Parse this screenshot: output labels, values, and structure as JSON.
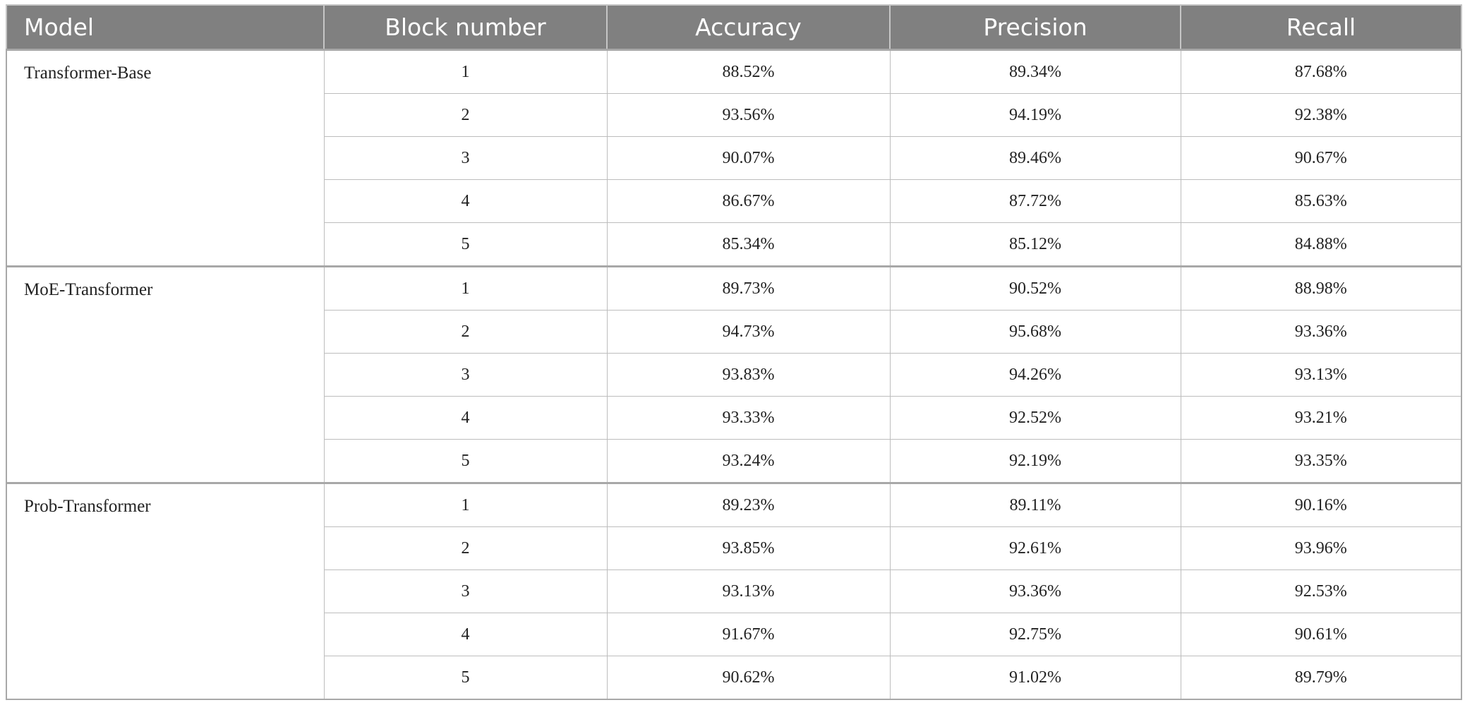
{
  "table": {
    "headers": {
      "model": "Model",
      "block": "Block number",
      "accuracy": "Accuracy",
      "precision": "Precision",
      "recall": "Recall"
    },
    "groups": [
      {
        "model": "Transformer-Base",
        "rows": [
          {
            "block": "1",
            "accuracy": "88.52%",
            "precision": "89.34%",
            "recall": "87.68%"
          },
          {
            "block": "2",
            "accuracy": "93.56%",
            "precision": "94.19%",
            "recall": "92.38%"
          },
          {
            "block": "3",
            "accuracy": "90.07%",
            "precision": "89.46%",
            "recall": "90.67%"
          },
          {
            "block": "4",
            "accuracy": "86.67%",
            "precision": "87.72%",
            "recall": "85.63%"
          },
          {
            "block": "5",
            "accuracy": "85.34%",
            "precision": "85.12%",
            "recall": "84.88%"
          }
        ]
      },
      {
        "model": "MoE-Transformer",
        "rows": [
          {
            "block": "1",
            "accuracy": "89.73%",
            "precision": "90.52%",
            "recall": "88.98%"
          },
          {
            "block": "2",
            "accuracy": "94.73%",
            "precision": "95.68%",
            "recall": "93.36%"
          },
          {
            "block": "3",
            "accuracy": "93.83%",
            "precision": "94.26%",
            "recall": "93.13%"
          },
          {
            "block": "4",
            "accuracy": "93.33%",
            "precision": "92.52%",
            "recall": "93.21%"
          },
          {
            "block": "5",
            "accuracy": "93.24%",
            "precision": "92.19%",
            "recall": "93.35%"
          }
        ]
      },
      {
        "model": "Prob-Transformer",
        "rows": [
          {
            "block": "1",
            "accuracy": "89.23%",
            "precision": "89.11%",
            "recall": "90.16%"
          },
          {
            "block": "2",
            "accuracy": "93.85%",
            "precision": "92.61%",
            "recall": "93.96%"
          },
          {
            "block": "3",
            "accuracy": "93.13%",
            "precision": "93.36%",
            "recall": "92.53%"
          },
          {
            "block": "4",
            "accuracy": "91.67%",
            "precision": "92.75%",
            "recall": "90.61%"
          },
          {
            "block": "5",
            "accuracy": "90.62%",
            "precision": "91.02%",
            "recall": "89.79%"
          }
        ]
      }
    ]
  }
}
